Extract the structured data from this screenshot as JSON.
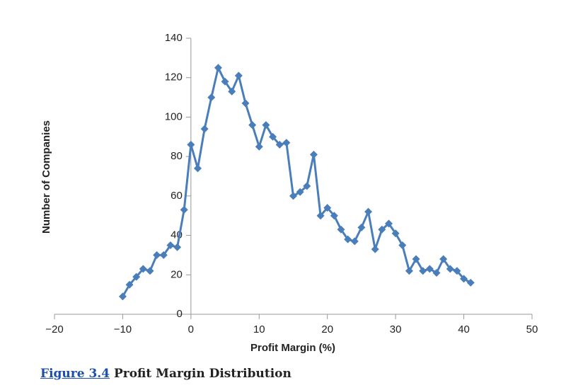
{
  "chart_data": {
    "type": "line",
    "x_label": "Profit Margin (%)",
    "y_label": "Number of Companies",
    "x": [
      -10,
      -9,
      -8,
      -7,
      -6,
      -5,
      -4,
      -3,
      -2,
      -1,
      0,
      1,
      2,
      3,
      4,
      5,
      6,
      7,
      8,
      9,
      10,
      11,
      12,
      13,
      14,
      15,
      16,
      17,
      18,
      19,
      20,
      21,
      22,
      23,
      24,
      25,
      26,
      27,
      28,
      29,
      30,
      31,
      32,
      33,
      34,
      35,
      36,
      37,
      38,
      39,
      40,
      41
    ],
    "series": [
      {
        "color": "#4a7ebb",
        "values": [
          9,
          15,
          19,
          23,
          22,
          30,
          30,
          35,
          34,
          53,
          86,
          74,
          94,
          110,
          125,
          118,
          113,
          121,
          107,
          96,
          85,
          96,
          90,
          86,
          87,
          60,
          62,
          65,
          81,
          50,
          54,
          50,
          43,
          38,
          37,
          44,
          52,
          33,
          43,
          46,
          41,
          35,
          22,
          28,
          22,
          23,
          21,
          28,
          23,
          22,
          18,
          16
        ]
      }
    ],
    "xlim": [
      -20,
      50
    ],
    "xticks": [
      {
        "value": -20,
        "label": "−20"
      },
      {
        "value": -10,
        "label": "−10"
      },
      0,
      10,
      20,
      30,
      40,
      50
    ],
    "ylim": [
      0,
      140
    ],
    "yticks": [
      0,
      20,
      40,
      60,
      80,
      100,
      120,
      140
    ]
  },
  "caption": {
    "figure": "Figure 3.4",
    "text": "Profit Margin Distribution"
  }
}
